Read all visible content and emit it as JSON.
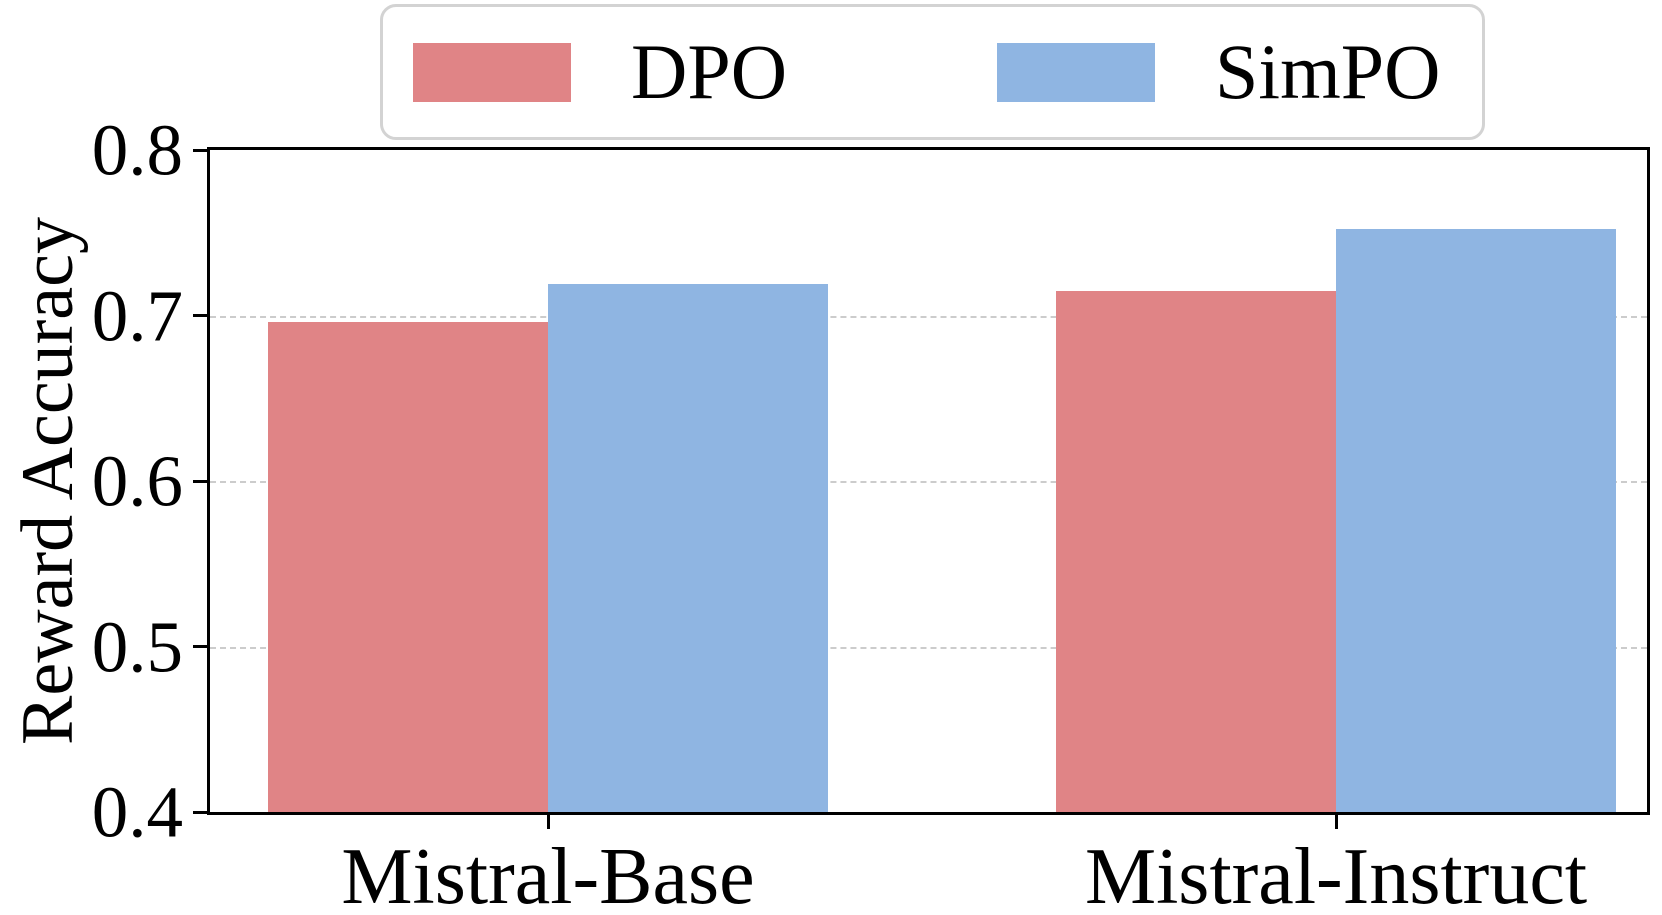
{
  "chart_data": {
    "type": "bar",
    "title": "",
    "categories": [
      "Mistral-Base",
      "Mistral-Instruct"
    ],
    "series": [
      {
        "name": "DPO",
        "color": "#e08486",
        "values": [
          0.696,
          0.715
        ]
      },
      {
        "name": "SimPO",
        "color": "#8fb5e2",
        "values": [
          0.719,
          0.752
        ]
      }
    ],
    "xlabel": "",
    "ylabel": "Reward Accuracy",
    "ylim": [
      0.4,
      0.8
    ],
    "yticks": [
      0.4,
      0.5,
      0.6,
      0.7,
      0.8
    ],
    "ytick_labels": [
      "0.4",
      "0.5",
      "0.6",
      "0.7",
      "0.8"
    ],
    "grid": "horizontal-dashed",
    "legend_position": "top"
  },
  "legend": {
    "items": [
      {
        "label": "DPO",
        "color": "#e08486"
      },
      {
        "label": "SimPO",
        "color": "#8fb5e2"
      }
    ]
  },
  "colors": {
    "background": "#ffffff",
    "axis": "#000000",
    "grid": "#cccccc",
    "legend_border": "#d3d3d3"
  }
}
